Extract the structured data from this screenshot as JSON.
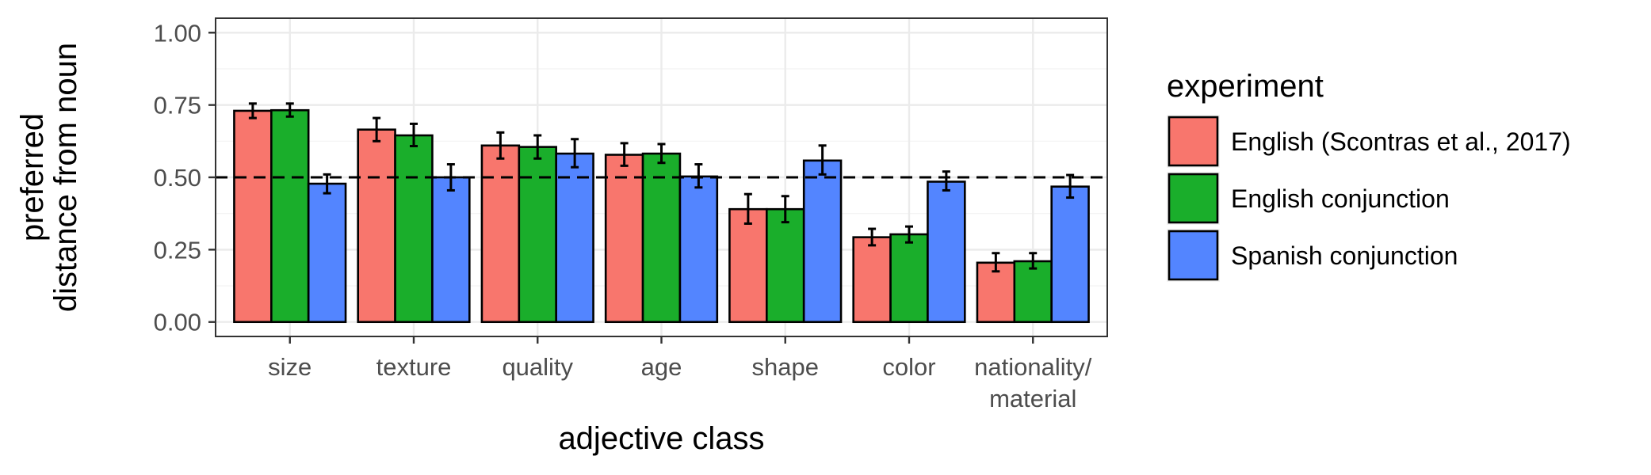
{
  "chart_data": {
    "type": "bar",
    "xlabel": "adjective class",
    "ylabel": [
      "preferred",
      "distance from noun"
    ],
    "categories": [
      [
        "size"
      ],
      [
        "texture"
      ],
      [
        "quality"
      ],
      [
        "age"
      ],
      [
        "shape"
      ],
      [
        "color"
      ],
      [
        "nationality/",
        "material"
      ]
    ],
    "ylim": [
      -0.05,
      1.05
    ],
    "yticks": [
      "0.00",
      "0.25",
      "0.50",
      "0.75",
      "1.00"
    ],
    "ytick_values": [
      0,
      0.25,
      0.5,
      0.75,
      1.0
    ],
    "reference_line": 0.5,
    "grid": true,
    "legend": {
      "title": "experiment",
      "position": "right"
    },
    "series": [
      {
        "name": "English (Scontras et al., 2017)",
        "color": "#F8766D",
        "values": [
          0.73,
          0.665,
          0.61,
          0.578,
          0.39,
          0.293,
          0.205
        ],
        "error_low": [
          0.705,
          0.625,
          0.565,
          0.54,
          0.34,
          0.265,
          0.175
        ],
        "error_high": [
          0.755,
          0.705,
          0.655,
          0.618,
          0.442,
          0.322,
          0.238
        ]
      },
      {
        "name": "English conjunction",
        "color": "#1AAE2B",
        "values": [
          0.732,
          0.645,
          0.605,
          0.582,
          0.39,
          0.303,
          0.21
        ],
        "error_low": [
          0.71,
          0.608,
          0.565,
          0.55,
          0.345,
          0.275,
          0.185
        ],
        "error_high": [
          0.755,
          0.685,
          0.645,
          0.615,
          0.435,
          0.33,
          0.238
        ]
      },
      {
        "name": "Spanish conjunction",
        "color": "#5385FF",
        "values": [
          0.478,
          0.5,
          0.582,
          0.503,
          0.558,
          0.485,
          0.468
        ],
        "error_low": [
          0.445,
          0.455,
          0.535,
          0.465,
          0.51,
          0.455,
          0.43
        ],
        "error_high": [
          0.51,
          0.545,
          0.632,
          0.545,
          0.61,
          0.52,
          0.508
        ]
      }
    ]
  }
}
